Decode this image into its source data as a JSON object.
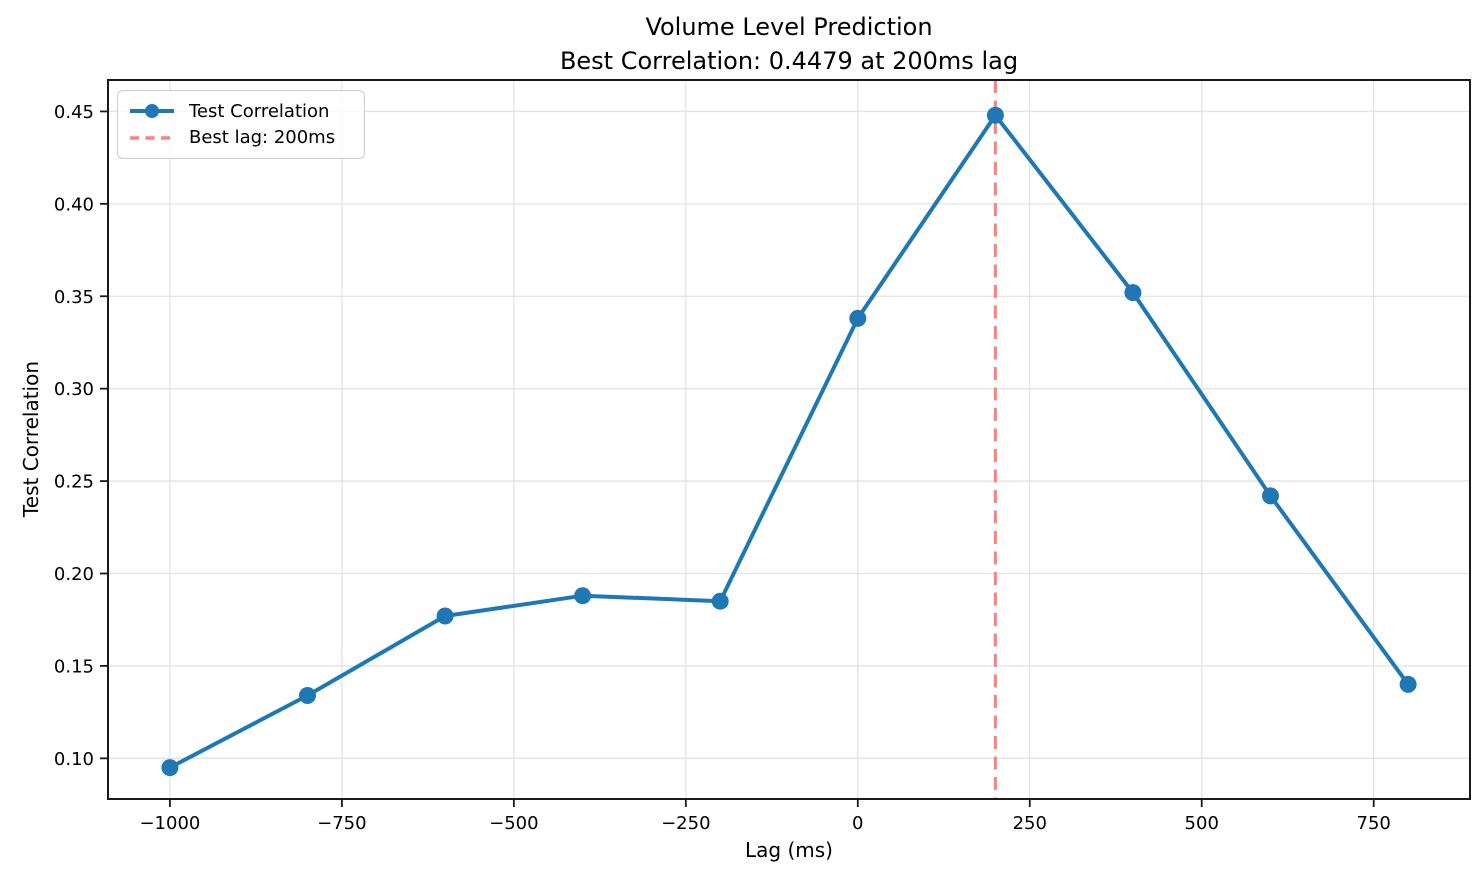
{
  "chart_data": {
    "type": "line",
    "title": "Volume Level Prediction",
    "subtitle": "Best Correlation: 0.4479 at 200ms lag",
    "xlabel": "Lag (ms)",
    "ylabel": "Test Correlation",
    "x": [
      -1000,
      -800,
      -600,
      -400,
      -200,
      0,
      200,
      400,
      600,
      800
    ],
    "series": [
      {
        "name": "Test Correlation",
        "values": [
          0.095,
          0.134,
          0.177,
          0.188,
          0.185,
          0.338,
          0.4479,
          0.352,
          0.242,
          0.14
        ],
        "color": "#1f77b4",
        "marker": "circle",
        "line_style": "solid"
      }
    ],
    "best_lag_line": {
      "label": "Best lag: 200ms",
      "x": 200,
      "color": "#ff7f7f",
      "style": "dashed"
    },
    "legend": [
      {
        "label": "Test Correlation",
        "color": "#1f77b4",
        "style": "solid-with-marker"
      },
      {
        "label": "Best lag: 200ms",
        "color": "#ff7f7f",
        "style": "dashed"
      }
    ],
    "legend_position": "upper-left",
    "grid": true,
    "xlim": [
      -1090,
      890
    ],
    "ylim": [
      0.078,
      0.467
    ],
    "xticks": {
      "values": [
        -1000,
        -750,
        -500,
        -250,
        0,
        250,
        500,
        750
      ],
      "labels": [
        "−1000",
        "−750",
        "−500",
        "−250",
        "0",
        "250",
        "500",
        "750"
      ]
    },
    "yticks": {
      "values": [
        0.1,
        0.15,
        0.2,
        0.25,
        0.3,
        0.35,
        0.4,
        0.45
      ],
      "labels": [
        "0.10",
        "0.15",
        "0.20",
        "0.25",
        "0.30",
        "0.35",
        "0.40",
        "0.45"
      ]
    },
    "axis_color": "#1a1a1a",
    "grid_color": "#e3e3e3",
    "text_color": "#000000"
  }
}
